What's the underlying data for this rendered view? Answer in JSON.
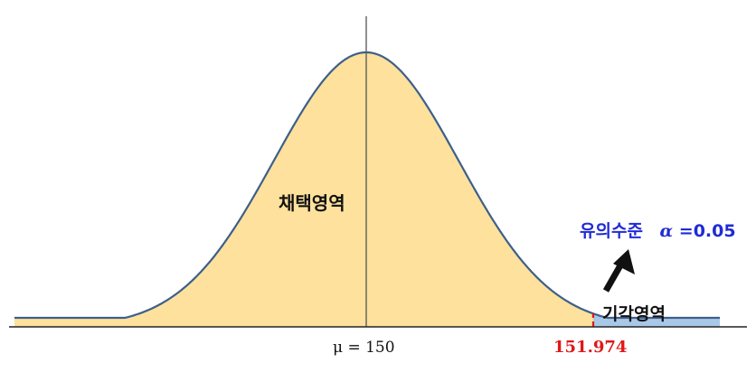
{
  "diagram": {
    "type": "normal-distribution-right-tailed-test",
    "mean": 150,
    "critical_value": 151.974,
    "alpha": 0.05,
    "labels": {
      "acceptance_region": "채택영역",
      "rejection_region": "기각영역",
      "significance_text": "유의수준",
      "alpha_symbol": "α",
      "alpha_value": "=0.05",
      "mean_label": "μ = 150",
      "critical_label": "151.974"
    },
    "colors": {
      "acceptance_fill": "#fde19c",
      "rejection_fill": "#a9c8e8",
      "curve_stroke": "#3d5f8a",
      "critical_line": "#e01818",
      "axis": "#222222",
      "mean_line": "#555555",
      "arrow": "#111111",
      "significance_text": "#1f2bd6",
      "critical_text": "#e01818"
    }
  }
}
